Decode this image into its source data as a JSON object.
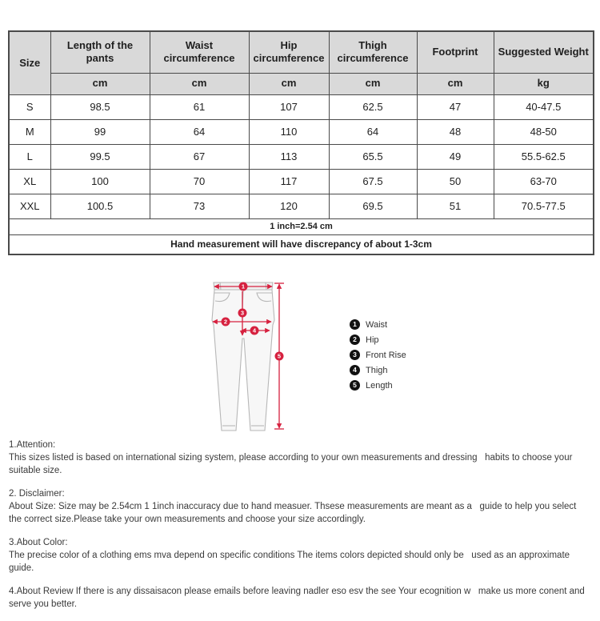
{
  "table": {
    "columns": [
      {
        "label": "Size",
        "unit": ""
      },
      {
        "label": "Length of the pants",
        "unit": "cm"
      },
      {
        "label": "Waist circumference",
        "unit": "cm"
      },
      {
        "label": "Hip circumference",
        "unit": "cm"
      },
      {
        "label": "Thigh circumference",
        "unit": "cm"
      },
      {
        "label": "Footprint",
        "unit": "cm"
      },
      {
        "label": "Suggested Weight",
        "unit": "kg"
      }
    ],
    "rows": [
      [
        "S",
        "98.5",
        "61",
        "107",
        "62.5",
        "47",
        "40-47.5"
      ],
      [
        "M",
        "99",
        "64",
        "110",
        "64",
        "48",
        "48-50"
      ],
      [
        "L",
        "99.5",
        "67",
        "113",
        "65.5",
        "49",
        "55.5-62.5"
      ],
      [
        "XL",
        "100",
        "70",
        "117",
        "67.5",
        "50",
        "63-70"
      ],
      [
        "XXL",
        "100.5",
        "73",
        "120",
        "69.5",
        "51",
        "70.5-77.5"
      ]
    ],
    "notes": [
      "1 inch=2.54 cm",
      "Hand measurement will have discrepancy of about 1-3cm"
    ]
  },
  "legend": {
    "items": [
      {
        "num": "1",
        "label": "Waist"
      },
      {
        "num": "2",
        "label": "Hip"
      },
      {
        "num": "3",
        "label": "Front Rise"
      },
      {
        "num": "4",
        "label": "Thigh"
      },
      {
        "num": "5",
        "label": "Length"
      }
    ]
  },
  "notes_sections": [
    {
      "heading": "1.Attention:",
      "body": "This sizes listed is based on international sizing system, please according to your own measurements and dressing   habits to choose your suitable size."
    },
    {
      "heading": "2. Disclaimer:",
      "body": "About Size: Size may be 2.54cm 1 1inch inaccuracy due to hand measuer. Thsese measurements are meant as a   guide to help you select the correct size.Please take your own measurements and choose your size accordingly."
    },
    {
      "heading": "3.About Color:",
      "body": "The precise color of a clothing ems mva depend on specific conditions The items colors depicted should only be   used as an approximate guide."
    },
    {
      "heading": "",
      "body": "4.About Review If there is any dissaisacon please emails before leaving nadler eso esv the see Your ecognition w   make us more conent and serve you better."
    }
  ],
  "colors": {
    "accent_red": "#d6213f",
    "header_bg": "#d9d9d9",
    "border": "#4a4a4a",
    "pants_stroke": "#b7b7b7"
  }
}
